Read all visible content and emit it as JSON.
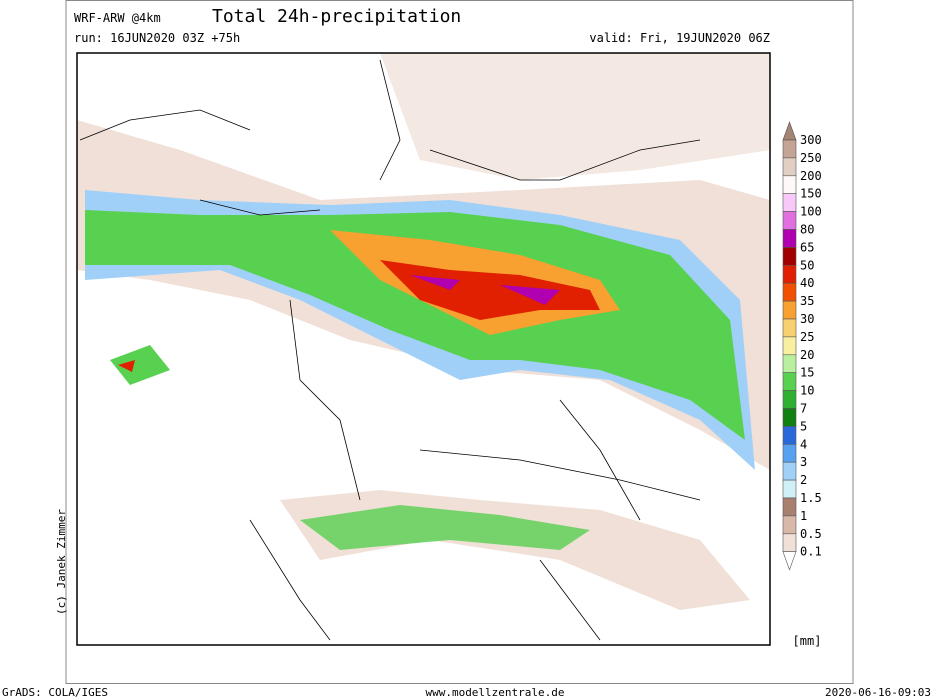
{
  "header": {
    "model": "WRF-ARW @4km",
    "title": "Total 24h-precipitation",
    "run": "run: 16JUN2020 03Z +75h",
    "valid": "valid: Fri, 19JUN2020 06Z"
  },
  "legend": {
    "levels": [
      300,
      250,
      200,
      150,
      100,
      80,
      65,
      50,
      40,
      35,
      30,
      25,
      20,
      15,
      10,
      7,
      5,
      4,
      3,
      2,
      1.5,
      1,
      0.5,
      0.1
    ],
    "colors": [
      "#a48472",
      "#c4a494",
      "#e2cfc4",
      "#fff8f8",
      "#f8c8f8",
      "#e070e0",
      "#b000b0",
      "#a00000",
      "#e02000",
      "#f05000",
      "#f8a030",
      "#f8d070",
      "#f8f0a0",
      "#b8f0a0",
      "#58d050",
      "#30b030",
      "#108010",
      "#2868d8",
      "#58a0f0",
      "#a0d0f8",
      "#d0f0f8",
      "#a88070",
      "#d8b8a8",
      "#f0e0d8",
      "#ffffff"
    ],
    "unit": "[mm]"
  },
  "footer": {
    "credit": "(c) Janek Zimmer",
    "software": "GrADS: COLA/IGES",
    "website": "www.modellzentrale.de",
    "timestamp": "2020-06-16-09:03"
  }
}
